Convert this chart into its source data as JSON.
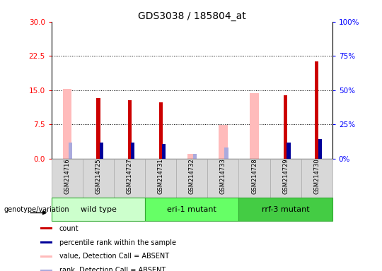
{
  "title": "GDS3038 / 185804_at",
  "samples": [
    "GSM214716",
    "GSM214725",
    "GSM214727",
    "GSM214731",
    "GSM214732",
    "GSM214733",
    "GSM214728",
    "GSM214729",
    "GSM214730"
  ],
  "count_present": [
    null,
    13.2,
    12.8,
    12.3,
    null,
    null,
    null,
    13.8,
    21.3
  ],
  "rank_present": [
    null,
    11.5,
    11.5,
    10.8,
    null,
    null,
    null,
    11.5,
    14.5
  ],
  "value_absent": [
    15.3,
    null,
    null,
    null,
    1.0,
    7.3,
    14.3,
    null,
    null
  ],
  "rank_absent": [
    11.5,
    null,
    null,
    null,
    3.2,
    8.2,
    null,
    null,
    null
  ],
  "ylim_left": [
    0,
    30
  ],
  "yticks_left": [
    0,
    7.5,
    15,
    22.5,
    30
  ],
  "ylim_right": [
    0,
    100
  ],
  "yticks_right": [
    0,
    25,
    50,
    75,
    100
  ],
  "count_color": "#cc0000",
  "rank_color": "#000099",
  "value_absent_color": "#ffbbbb",
  "rank_absent_color": "#aaaadd",
  "group_colors": [
    "#ccffcc",
    "#66ff66",
    "#44cc44"
  ],
  "group_labels": [
    "wild type",
    "eri-1 mutant",
    "rrf-3 mutant"
  ],
  "group_ranges": [
    [
      0,
      3
    ],
    [
      3,
      6
    ],
    [
      6,
      9
    ]
  ],
  "dotted_lines": [
    7.5,
    15,
    22.5
  ]
}
